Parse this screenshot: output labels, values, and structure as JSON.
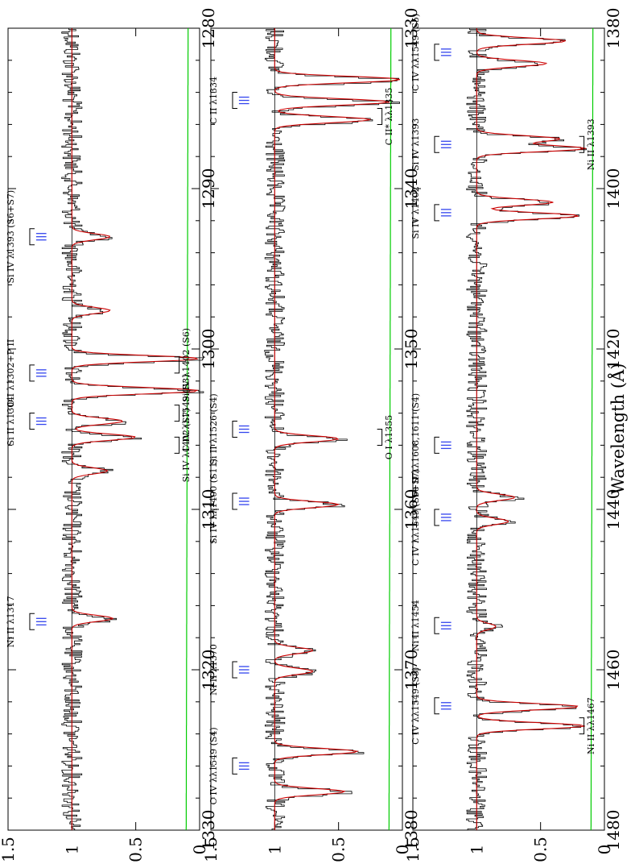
{
  "chart_data": {
    "type": "line",
    "xlabel": "Wavelength (Å)",
    "ylabel": "",
    "colors": {
      "flux": "#000000",
      "model": "#cc0000",
      "error": "#00cc00",
      "velocity_marks": "#3344ee",
      "continuum": "#000000"
    },
    "panels": [
      {
        "xlim": [
          1280,
          1330
        ],
        "ylim": [
          0,
          1.5
        ],
        "x_ticks": [
          "1280",
          "1290",
          "1300",
          "1310",
          "1320",
          "1330"
        ],
        "y_ticks": [
          "0",
          "0.5",
          "1",
          "1.5"
        ],
        "annotations": [
          {
            "text": "Si IV λ1393 (S6+S7)",
            "x": 1293,
            "side": "upper"
          },
          {
            "text": "O I λ1302+P II",
            "x": 1301.5,
            "side": "upper"
          },
          {
            "text": "Si II λ1304",
            "x": 1304.5,
            "side": "upper"
          },
          {
            "text": "Ni II λ1317",
            "x": 1317,
            "side": "upper"
          },
          {
            "text": "Si IV λ1402 (S6)",
            "x": 1301,
            "side": "lower"
          },
          {
            "text": "Si IV λ1402 (S7)",
            "x": 1306,
            "side": "lower"
          },
          {
            "text": "C IV λλ1549 (S3)",
            "x": 1304,
            "side": "lower"
          }
        ],
        "absorption_features": [
          {
            "x": 1293.0,
            "depth": 0.3
          },
          {
            "x": 1297.6,
            "depth": 0.3
          },
          {
            "x": 1300.6,
            "depth": 1.0
          },
          {
            "x": 1302.6,
            "depth": 1.0
          },
          {
            "x": 1304.5,
            "depth": 0.4
          },
          {
            "x": 1305.5,
            "depth": 0.5
          },
          {
            "x": 1307.6,
            "depth": 0.28
          },
          {
            "x": 1316.8,
            "depth": 0.32
          }
        ]
      },
      {
        "xlim": [
          1330,
          1380
        ],
        "ylim": [
          0,
          1.5
        ],
        "x_ticks": [
          "1330",
          "1340",
          "1350",
          "1360",
          "1370",
          "1380"
        ],
        "y_ticks": [
          "0",
          "0.5",
          "1",
          "1.5"
        ],
        "annotations": [
          {
            "text": "C II λ1334",
            "x": 1334.5,
            "side": "upper"
          },
          {
            "text": "Si II λ1526 (S4)",
            "x": 1355,
            "side": "upper"
          },
          {
            "text": "Si IV λλ1400 (S11)",
            "x": 1359.5,
            "side": "upper"
          },
          {
            "text": "Ni II λ1370",
            "x": 1370,
            "side": "upper"
          },
          {
            "text": "C IV λλ1549 (S4)",
            "x": 1376,
            "side": "upper"
          },
          {
            "text": "C II* λλ1335",
            "x": 1335.5,
            "side": "lower"
          },
          {
            "text": "O I λ1355",
            "x": 1355.5,
            "side": "lower"
          }
        ],
        "absorption_features": [
          {
            "x": 1333.2,
            "depth": 1.0
          },
          {
            "x": 1334.6,
            "depth": 0.9
          },
          {
            "x": 1335.7,
            "depth": 0.75
          },
          {
            "x": 1355.6,
            "depth": 0.5
          },
          {
            "x": 1359.7,
            "depth": 0.5
          },
          {
            "x": 1368.8,
            "depth": 0.3
          },
          {
            "x": 1370.1,
            "depth": 0.3
          },
          {
            "x": 1375.1,
            "depth": 0.65
          },
          {
            "x": 1377.6,
            "depth": 0.55
          }
        ]
      },
      {
        "xlim": [
          1380,
          1480
        ],
        "ylim": [
          0,
          1.5
        ],
        "x_ticks": [
          "1380",
          "1400",
          "1420",
          "1440",
          "1460",
          "1480"
        ],
        "y_ticks": [
          "0",
          "0.5",
          "1",
          "1.5"
        ],
        "annotations": [
          {
            "text": "C IV λλ1549 (S5)",
            "x": 1383,
            "side": "upper"
          },
          {
            "text": "Si IV λ1393",
            "x": 1394.5,
            "side": "upper"
          },
          {
            "text": "Si IV λ1402",
            "x": 1403,
            "side": "upper"
          },
          {
            "text": "Fe II λλ1608,1611 (S4)",
            "x": 1432,
            "side": "upper"
          },
          {
            "text": "C IV λλ1549 (S6+S7)",
            "x": 1441,
            "side": "upper"
          },
          {
            "text": "Ni II λ1454",
            "x": 1454.5,
            "side": "upper"
          },
          {
            "text": "C IV λλ1549 (S8)",
            "x": 1464.5,
            "side": "upper"
          },
          {
            "text": "Ni II λ1393",
            "x": 1394.5,
            "side": "lower"
          },
          {
            "text": "Ni II λλ1467",
            "x": 1467,
            "side": "lower"
          }
        ],
        "absorption_features": [
          {
            "x": 1381.6,
            "depth": 0.7
          },
          {
            "x": 1384.4,
            "depth": 0.55
          },
          {
            "x": 1393.8,
            "depth": 0.65
          },
          {
            "x": 1395.0,
            "depth": 0.85
          },
          {
            "x": 1401.7,
            "depth": 0.6
          },
          {
            "x": 1403.4,
            "depth": 0.8
          },
          {
            "x": 1438.5,
            "depth": 0.3
          },
          {
            "x": 1441.5,
            "depth": 0.25
          },
          {
            "x": 1454.6,
            "depth": 0.15
          },
          {
            "x": 1464.6,
            "depth": 0.8
          },
          {
            "x": 1467.0,
            "depth": 0.85
          }
        ]
      }
    ]
  }
}
